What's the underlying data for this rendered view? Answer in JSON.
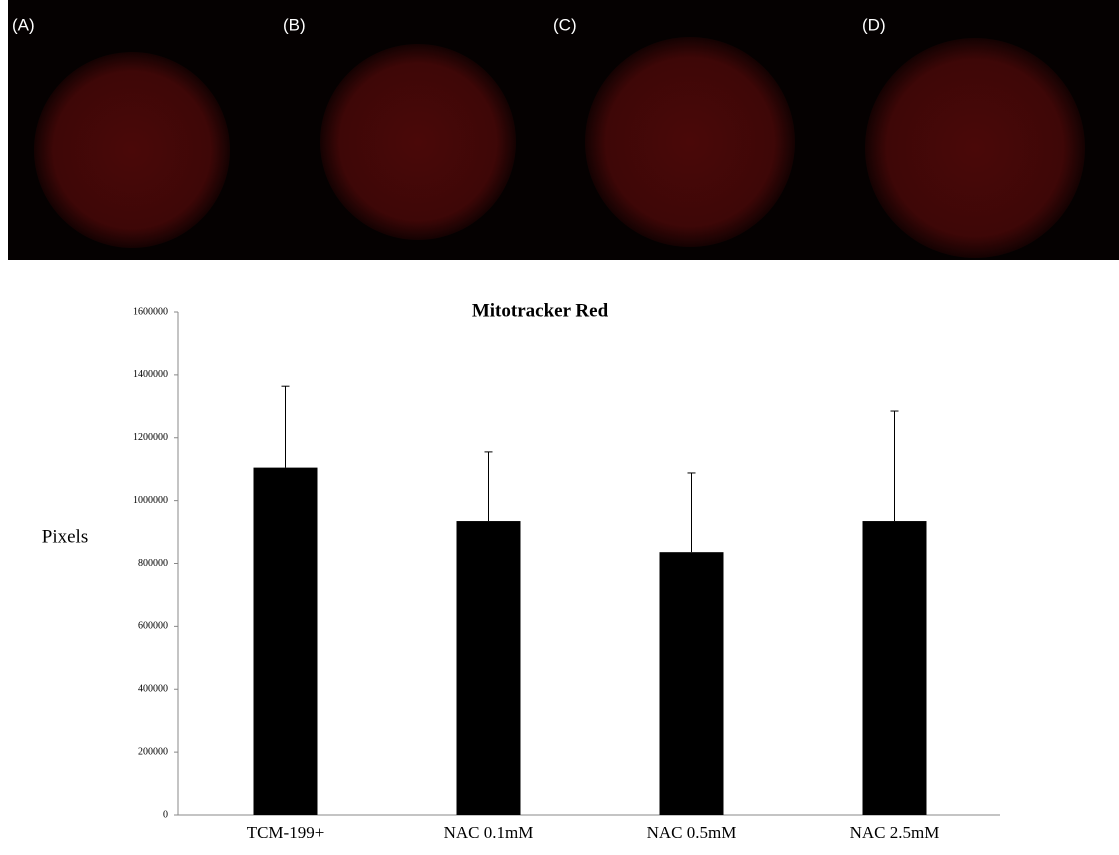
{
  "panel_labels": [
    "(A)",
    "(B)",
    "(C)",
    "(D)"
  ],
  "chart_data": {
    "type": "bar",
    "title": "Mitotracker Red",
    "y_label": "Pixels",
    "categories": [
      "TCM-199+",
      "NAC 0.1mM",
      "NAC 0.5mM",
      "NAC 2.5mM"
    ],
    "values": [
      1105000,
      935000,
      836000,
      935000
    ],
    "errors": [
      259000,
      220000,
      252000,
      350000
    ],
    "color": "#000000",
    "ylim": [
      0,
      1600000
    ],
    "yticks": [
      0,
      200000,
      400000,
      600000,
      800000,
      1000000,
      1200000,
      1400000,
      1600000
    ],
    "grid": false
  }
}
